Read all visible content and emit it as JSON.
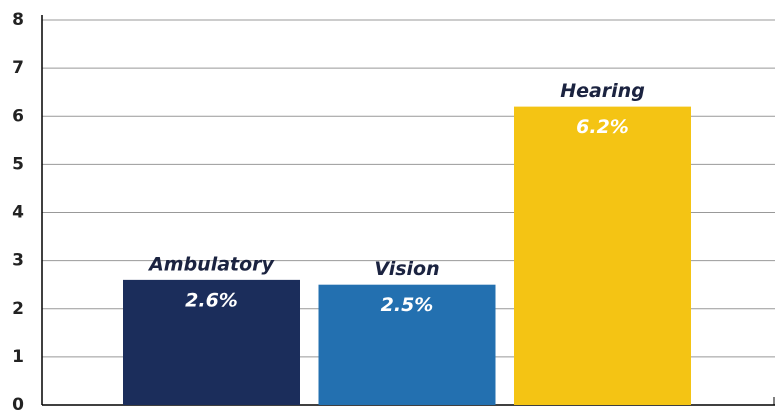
{
  "chart_data": {
    "type": "bar",
    "categories": [
      "Ambulatory",
      "Vision",
      "Hearing"
    ],
    "values": [
      2.6,
      2.5,
      6.2
    ],
    "value_labels": [
      "2.6%",
      "2.5%",
      "6.2%"
    ],
    "colors": [
      "#1b2d5b",
      "#2370b0",
      "#f4c414"
    ],
    "ylim": [
      0,
      8
    ],
    "yticks": [
      0,
      1,
      2,
      3,
      4,
      5,
      6,
      7,
      8
    ],
    "grid": true
  }
}
